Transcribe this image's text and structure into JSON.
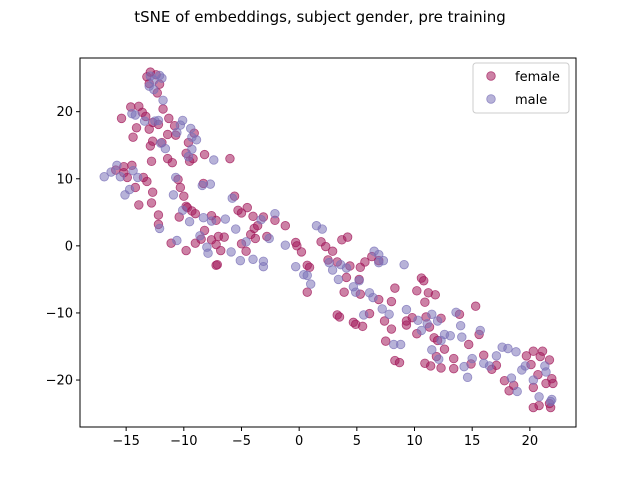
{
  "chart_data": {
    "type": "scatter",
    "title": "tSNE of embeddings, subject gender, pre training",
    "xlabel": "",
    "ylabel": "",
    "xlim": [
      -19,
      24
    ],
    "ylim": [
      -27,
      28
    ],
    "xticks": [
      -15,
      -10,
      -5,
      0,
      5,
      10,
      15,
      20
    ],
    "yticks": [
      -20,
      -10,
      0,
      10,
      20
    ],
    "xtick_labels": [
      "−15",
      "−10",
      "−5",
      "0",
      "5",
      "10",
      "15",
      "20"
    ],
    "ytick_labels": [
      "−20",
      "−10",
      "0",
      "10",
      "20"
    ],
    "grid": false,
    "legend_position": "top-right",
    "marker_alpha": 0.55,
    "series": [
      {
        "name": "female",
        "color": "#a2195b",
        "points": [
          [
            -13.2,
            25.2
          ],
          [
            -12.9,
            25.9
          ],
          [
            -12.4,
            25.5
          ],
          [
            -13.0,
            24.2
          ],
          [
            -12.3,
            22.8
          ],
          [
            -12.1,
            24.1
          ],
          [
            -11.8,
            20.4
          ],
          [
            -13.9,
            20.8
          ],
          [
            -14.6,
            20.7
          ],
          [
            -15.4,
            19.0
          ],
          [
            -13.6,
            19.9
          ],
          [
            -13.3,
            19.3
          ],
          [
            -12.7,
            18.4
          ],
          [
            -14.1,
            17.6
          ],
          [
            -14.4,
            16.2
          ],
          [
            -13.0,
            17.4
          ],
          [
            -12.7,
            15.6
          ],
          [
            -12.9,
            14.9
          ],
          [
            -11.3,
            19.0
          ],
          [
            -11.4,
            16.6
          ],
          [
            -10.8,
            17.9
          ],
          [
            -10.7,
            16.5
          ],
          [
            -12.2,
            18.1
          ],
          [
            -15.9,
            11.3
          ],
          [
            -15.2,
            10.9
          ],
          [
            -14.9,
            10.2
          ],
          [
            -14.5,
            12.0
          ],
          [
            -15.2,
            11.8
          ],
          [
            -14.2,
            8.7
          ],
          [
            -13.9,
            6.1
          ],
          [
            -13.5,
            10.2
          ],
          [
            -13.2,
            9.6
          ],
          [
            -12.7,
            8.0
          ],
          [
            -12.8,
            12.6
          ],
          [
            -12.8,
            6.4
          ],
          [
            -11.9,
            15.4
          ],
          [
            -11.4,
            13.0
          ],
          [
            -11.0,
            12.4
          ],
          [
            -10.5,
            9.9
          ],
          [
            -10.3,
            8.7
          ],
          [
            -10.0,
            7.4
          ],
          [
            -9.8,
            5.9
          ],
          [
            -9.7,
            5.7
          ],
          [
            -9.3,
            5.2
          ],
          [
            -9.0,
            4.8
          ],
          [
            -10.4,
            4.3
          ],
          [
            -12.2,
            4.6
          ],
          [
            -12.2,
            3.2
          ],
          [
            -11.1,
            0.4
          ],
          [
            -9.8,
            -0.7
          ],
          [
            -9.0,
            0.4
          ],
          [
            -8.5,
            1.0
          ],
          [
            -8.2,
            2.3
          ],
          [
            -7.6,
            0.9
          ],
          [
            -7.2,
            0.2
          ],
          [
            -6.8,
            -0.7
          ],
          [
            -7.0,
            1.4
          ],
          [
            -7.6,
            4.5
          ],
          [
            -7.2,
            3.8
          ],
          [
            -6.5,
            1.3
          ],
          [
            -9.8,
            13.8
          ],
          [
            -9.6,
            15.4
          ],
          [
            -9.2,
            13.0
          ],
          [
            -9.5,
            12.6
          ],
          [
            -8.2,
            13.6
          ],
          [
            -8.3,
            9.3
          ],
          [
            -9.1,
            16.8
          ],
          [
            -6.0,
            13.0
          ],
          [
            -5.6,
            7.4
          ],
          [
            -5.3,
            5.3
          ],
          [
            -5.0,
            4.9
          ],
          [
            -4.5,
            5.7
          ],
          [
            -4.0,
            4.4
          ],
          [
            -3.1,
            4.3
          ],
          [
            -3.6,
            3.0
          ],
          [
            -3.9,
            2.6
          ],
          [
            -4.2,
            1.7
          ],
          [
            -5.0,
            0.3
          ],
          [
            -4.6,
            -0.8
          ],
          [
            -3.8,
            1.1
          ],
          [
            -2.8,
            1.4
          ],
          [
            -2.1,
            3.8
          ],
          [
            -1.2,
            3.0
          ],
          [
            -0.3,
            0.5
          ],
          [
            -0.2,
            0.0
          ],
          [
            0.2,
            -0.9
          ],
          [
            0.7,
            -2.9
          ],
          [
            0.9,
            -3.2
          ],
          [
            0.7,
            -6.9
          ],
          [
            1.9,
            0.6
          ],
          [
            2.3,
            -0.1
          ],
          [
            2.5,
            -2.1
          ],
          [
            2.9,
            -0.8
          ],
          [
            3.3,
            -2.4
          ],
          [
            3.3,
            -10.3
          ],
          [
            3.5,
            -10.6
          ],
          [
            3.7,
            0.9
          ],
          [
            4.2,
            1.3
          ],
          [
            4.4,
            -3.0
          ],
          [
            4.1,
            -4.7
          ],
          [
            3.9,
            -6.9
          ],
          [
            4.7,
            -11.4
          ],
          [
            4.9,
            -11.7
          ],
          [
            5.2,
            -5.0
          ],
          [
            5.3,
            -7.2
          ],
          [
            5.5,
            -12.0
          ],
          [
            6.1,
            -10.1
          ],
          [
            5.7,
            -2.4
          ],
          [
            5.3,
            -3.2
          ],
          [
            6.3,
            -1.6
          ],
          [
            6.9,
            -2.2
          ],
          [
            6.9,
            -8.0
          ],
          [
            7.5,
            -14.2
          ],
          [
            7.4,
            -11.2
          ],
          [
            8.0,
            -12.4
          ],
          [
            8.3,
            -17.1
          ],
          [
            8.7,
            -17.4
          ],
          [
            8.0,
            -8.3
          ],
          [
            8.3,
            -6.3
          ],
          [
            9.3,
            -11.2
          ],
          [
            9.3,
            -11.8
          ],
          [
            9.8,
            -10.7
          ],
          [
            10.2,
            -6.7
          ],
          [
            10.6,
            -4.8
          ],
          [
            10.8,
            -5.2
          ],
          [
            10.9,
            -8.4
          ],
          [
            11.2,
            -7.0
          ],
          [
            11.0,
            -10.6
          ],
          [
            10.2,
            -13.1
          ],
          [
            11.3,
            -12.1
          ],
          [
            10.9,
            -17.5
          ],
          [
            11.4,
            -17.9
          ],
          [
            11.9,
            -16.5
          ],
          [
            11.7,
            -13.7
          ],
          [
            12.0,
            -14.1
          ],
          [
            11.8,
            -7.3
          ],
          [
            12.3,
            -10.8
          ],
          [
            12.3,
            -18.2
          ],
          [
            12.6,
            -15.4
          ],
          [
            13.4,
            -16.8
          ],
          [
            13.4,
            -18.3
          ],
          [
            13.9,
            -10.2
          ],
          [
            14.7,
            -14.7
          ],
          [
            14.9,
            -17.6
          ],
          [
            15.3,
            -9.0
          ],
          [
            15.6,
            -13.2
          ],
          [
            16.0,
            -16.3
          ],
          [
            16.7,
            -18.4
          ],
          [
            17.1,
            -17.8
          ],
          [
            17.8,
            -20.1
          ],
          [
            18.2,
            -21.6
          ],
          [
            18.6,
            -20.8
          ],
          [
            19.7,
            -16.4
          ],
          [
            20.1,
            -17.7
          ],
          [
            20.3,
            -21.1
          ],
          [
            20.3,
            -15.7
          ],
          [
            20.9,
            -16.5
          ],
          [
            21.1,
            -15.7
          ],
          [
            20.7,
            -19.2
          ],
          [
            21.4,
            -20.5
          ],
          [
            21.7,
            -17.0
          ],
          [
            21.9,
            -19.8
          ],
          [
            22.0,
            -20.5
          ],
          [
            21.7,
            -23.5
          ],
          [
            21.8,
            -24.1
          ],
          [
            20.8,
            -23.8
          ],
          [
            20.3,
            -24.1
          ],
          [
            -7.2,
            -2.9
          ],
          [
            -7.1,
            -2.8
          ]
        ]
      },
      {
        "name": "male",
        "color": "#7b72b8",
        "points": [
          [
            -12.9,
            25.3
          ],
          [
            -12.6,
            24.7
          ],
          [
            -12.1,
            25.4
          ],
          [
            -11.9,
            25.0
          ],
          [
            -13.0,
            23.8
          ],
          [
            -12.6,
            23.3
          ],
          [
            -11.8,
            21.7
          ],
          [
            -14.5,
            19.7
          ],
          [
            -14.2,
            19.5
          ],
          [
            -13.4,
            18.6
          ],
          [
            -12.5,
            18.6
          ],
          [
            -12.2,
            18.7
          ],
          [
            -12.0,
            15.3
          ],
          [
            -11.6,
            14.5
          ],
          [
            -10.6,
            16.9
          ],
          [
            -10.3,
            18.0
          ],
          [
            -10.1,
            18.7
          ],
          [
            -9.4,
            17.5
          ],
          [
            -9.3,
            16.2
          ],
          [
            -8.9,
            15.8
          ],
          [
            -9.3,
            14.4
          ],
          [
            -9.6,
            13.3
          ],
          [
            -7.4,
            12.8
          ],
          [
            -7.7,
            9.2
          ],
          [
            -8.4,
            9.0
          ],
          [
            -16.9,
            10.3
          ],
          [
            -16.3,
            11.0
          ],
          [
            -15.8,
            12.0
          ],
          [
            -15.5,
            10.3
          ],
          [
            -15.1,
            7.6
          ],
          [
            -14.7,
            8.4
          ],
          [
            -14.4,
            11.2
          ],
          [
            -14.0,
            10.2
          ],
          [
            -12.1,
            2.6
          ],
          [
            -10.9,
            7.6
          ],
          [
            -10.7,
            10.2
          ],
          [
            -10.1,
            5.3
          ],
          [
            -9.5,
            3.6
          ],
          [
            -10.6,
            0.8
          ],
          [
            -8.3,
            4.2
          ],
          [
            -7.6,
            3.7
          ],
          [
            -8.0,
            -0.2
          ],
          [
            -7.9,
            -1.1
          ],
          [
            -8.6,
            1.5
          ],
          [
            -6.4,
            4.0
          ],
          [
            -5.8,
            7.1
          ],
          [
            -5.5,
            2.5
          ],
          [
            -5.1,
            -2.2
          ],
          [
            -5.9,
            -0.9
          ],
          [
            -4.6,
            0.6
          ],
          [
            -4.0,
            -2.0
          ],
          [
            -3.3,
            3.9
          ],
          [
            -3.1,
            -2.3
          ],
          [
            -3.1,
            -3.1
          ],
          [
            -2.6,
            1.1
          ],
          [
            -2.1,
            4.8
          ],
          [
            -1.2,
            0.1
          ],
          [
            -0.3,
            -3.1
          ],
          [
            0.4,
            -4.3
          ],
          [
            0.7,
            -4.4
          ],
          [
            1.0,
            -5.7
          ],
          [
            1.5,
            3.0
          ],
          [
            2.0,
            2.5
          ],
          [
            2.6,
            -2.5
          ],
          [
            2.9,
            -3.6
          ],
          [
            3.4,
            -5.0
          ],
          [
            3.6,
            -2.8
          ],
          [
            4.1,
            -3.3
          ],
          [
            4.7,
            -6.1
          ],
          [
            4.9,
            -6.9
          ],
          [
            5.2,
            -5.2
          ],
          [
            5.6,
            -10.3
          ],
          [
            6.1,
            -7.0
          ],
          [
            6.5,
            -0.8
          ],
          [
            6.9,
            -1.3
          ],
          [
            6.9,
            -2.5
          ],
          [
            6.4,
            -7.7
          ],
          [
            7.3,
            -2.2
          ],
          [
            7.2,
            -9.4
          ],
          [
            7.8,
            -10.2
          ],
          [
            8.2,
            -14.7
          ],
          [
            8.8,
            -14.7
          ],
          [
            9.1,
            -2.8
          ],
          [
            9.3,
            -9.5
          ],
          [
            10.3,
            -11.1
          ],
          [
            10.6,
            -12.6
          ],
          [
            11.1,
            -11.6
          ],
          [
            11.5,
            -15.5
          ],
          [
            11.5,
            -10.2
          ],
          [
            12.0,
            -11.2
          ],
          [
            12.1,
            -16.9
          ],
          [
            12.3,
            -14.1
          ],
          [
            12.6,
            -13.2
          ],
          [
            13.1,
            -13.4
          ],
          [
            13.6,
            -9.9
          ],
          [
            14.0,
            -11.9
          ],
          [
            14.1,
            -13.6
          ],
          [
            14.3,
            -18.0
          ],
          [
            14.6,
            -19.6
          ],
          [
            15.0,
            -16.8
          ],
          [
            15.7,
            -12.6
          ],
          [
            16.0,
            -17.5
          ],
          [
            16.5,
            -17.9
          ],
          [
            17.1,
            -16.4
          ],
          [
            17.6,
            -15.1
          ],
          [
            18.1,
            -15.3
          ],
          [
            18.4,
            -19.7
          ],
          [
            18.8,
            -15.8
          ],
          [
            18.9,
            -21.7
          ],
          [
            19.3,
            -18.5
          ],
          [
            19.6,
            -17.9
          ],
          [
            20.3,
            -20.0
          ],
          [
            20.8,
            -22.5
          ],
          [
            21.3,
            -17.9
          ],
          [
            21.4,
            -18.8
          ],
          [
            21.9,
            -22.9
          ],
          [
            21.8,
            -23.2
          ]
        ]
      }
    ]
  }
}
